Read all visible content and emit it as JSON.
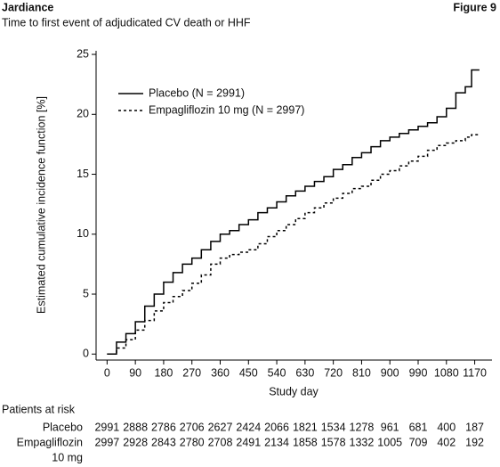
{
  "chart_data": {
    "type": "line",
    "step": true,
    "brand": "Jardiance",
    "figure": "Figure 9",
    "title": "Time to first event of adjudicated CV death or HHF",
    "x_label": "Study day",
    "y_label": "Estimated cumulative incidence function [%]",
    "xlim": [
      -35,
      1225
    ],
    "ylim": [
      -0.5,
      25.3
    ],
    "xticks": [
      0,
      90,
      180,
      270,
      360,
      450,
      540,
      630,
      720,
      810,
      900,
      990,
      1080,
      1170
    ],
    "yticks": [
      0,
      5,
      10,
      15,
      20,
      25
    ],
    "legend": "upper left",
    "x": [
      0,
      30,
      60,
      90,
      120,
      150,
      180,
      210,
      240,
      270,
      300,
      330,
      360,
      390,
      420,
      450,
      480,
      510,
      540,
      570,
      600,
      630,
      660,
      690,
      720,
      750,
      780,
      810,
      840,
      870,
      900,
      930,
      960,
      990,
      1020,
      1050,
      1080,
      1110,
      1140,
      1160,
      1185
    ],
    "series": [
      {
        "name": "Placebo (N = 2991)",
        "color": "#000000",
        "dash": "solid",
        "values": [
          0,
          1,
          1.7,
          2.7,
          4,
          5,
          6,
          6.8,
          7.5,
          8,
          8.7,
          9.4,
          10,
          10.3,
          10.8,
          11.2,
          11.8,
          12.2,
          12.7,
          13.2,
          13.6,
          14,
          14.4,
          14.8,
          15.4,
          15.8,
          16.4,
          16.8,
          17.3,
          17.8,
          18.1,
          18.4,
          18.7,
          19,
          19.3,
          19.8,
          20.5,
          21.8,
          22.3,
          23.7,
          23.7
        ]
      },
      {
        "name": "Empagliflozin 10 mg (N = 2997)",
        "color": "#000000",
        "dash": "dashed",
        "values": [
          0,
          0.5,
          1.2,
          2,
          2.8,
          3.6,
          4.3,
          4.8,
          5.3,
          5.9,
          6.6,
          7.5,
          8,
          8.3,
          8.5,
          8.7,
          9.2,
          9.8,
          10.3,
          10.8,
          11.3,
          11.8,
          12.2,
          12.6,
          13,
          13.4,
          13.8,
          14,
          14.5,
          15,
          15.3,
          15.7,
          16.1,
          16.5,
          17,
          17.4,
          17.6,
          17.8,
          18.1,
          18.3,
          18.3
        ]
      }
    ]
  },
  "risk_table": {
    "title": "Patients at risk",
    "rows": [
      {
        "label": [
          "Placebo"
        ],
        "values": [
          2991,
          2888,
          2786,
          2706,
          2627,
          2424,
          2066,
          1821,
          1534,
          1278,
          961,
          681,
          400,
          187
        ]
      },
      {
        "label": [
          "Empagliflozin",
          "10 mg"
        ],
        "values": [
          2997,
          2928,
          2843,
          2780,
          2708,
          2491,
          2134,
          1858,
          1578,
          1332,
          1005,
          709,
          402,
          192
        ]
      }
    ]
  }
}
